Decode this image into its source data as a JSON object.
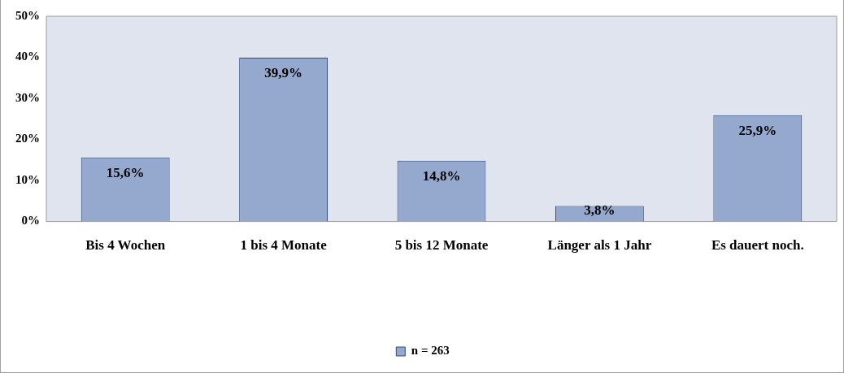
{
  "chart_data": {
    "type": "bar",
    "categories": [
      "Bis 4 Wochen",
      "1 bis 4 Monate",
      "5 bis 12 Monate",
      "Länger als 1 Jahr",
      "Es dauert noch."
    ],
    "series": [
      {
        "name": "n = 263",
        "color": "#95a9cf",
        "values": [
          15.6,
          39.9,
          14.8,
          3.8,
          25.9
        ],
        "value_labels": [
          "15,6%",
          "39,9%",
          "14,8%",
          "3,8%",
          "25,9%"
        ]
      }
    ],
    "ylim": [
      0,
      50
    ],
    "yticks": [
      {
        "value": 0,
        "label": "0%"
      },
      {
        "value": 10,
        "label": "10%"
      },
      {
        "value": 20,
        "label": "20%"
      },
      {
        "value": 30,
        "label": "30%"
      },
      {
        "value": 40,
        "label": "40%"
      },
      {
        "value": 50,
        "label": "50%"
      }
    ],
    "legend": "bottom"
  }
}
